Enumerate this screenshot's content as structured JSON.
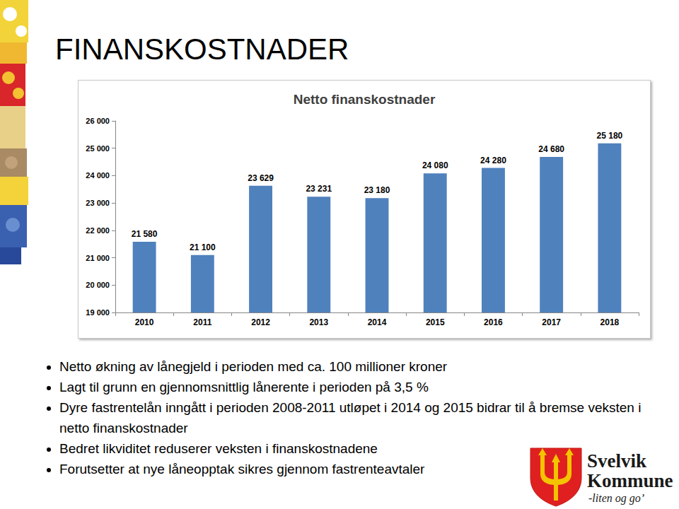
{
  "chart_data": {
    "type": "bar",
    "title": "Netto finanskostnader",
    "categories": [
      "2010",
      "2011",
      "2012",
      "2013",
      "2014",
      "2015",
      "2016",
      "2017",
      "2018"
    ],
    "values": [
      21580,
      21100,
      23629,
      23231,
      23180,
      24080,
      24280,
      24680,
      25180
    ],
    "value_labels": [
      "21 580",
      "21 100",
      "23 629",
      "23 231",
      "23 180",
      "24 080",
      "24 280",
      "24 680",
      "25 180"
    ],
    "color": "#4f81bd",
    "ylim": [
      19000,
      26000
    ],
    "yticks": [
      {
        "value": 19000,
        "label": "19 000"
      },
      {
        "value": 20000,
        "label": "20 000"
      },
      {
        "value": 21000,
        "label": "21 000"
      },
      {
        "value": 22000,
        "label": "22 000"
      },
      {
        "value": 23000,
        "label": "23 000"
      },
      {
        "value": 24000,
        "label": "24 000"
      },
      {
        "value": 25000,
        "label": "25 000"
      },
      {
        "value": 26000,
        "label": "26 000"
      }
    ],
    "grid": false,
    "data_labels": true
  },
  "slide": {
    "heading": "FINANSKOSTNADER",
    "bullets": [
      "Netto økning av lånegjeld i perioden med ca. 100 millioner kroner",
      "Lagt til grunn en gjennomsnittlig lånerente i perioden på 3,5 %",
      "Dyre fastrentelån inngått i perioden 2008-2011 utløpet i 2014 og 2015 bidrar til å bremse veksten i netto finanskostnader",
      "Bedret likviditet reduserer veksten i finanskostnadene",
      "Forutsetter at nye låneopptak sikres gjennom fastrenteavtaler"
    ],
    "logo": {
      "name_lines": [
        "Svelvik",
        "Kommune"
      ],
      "slogan": "-liten og go’"
    }
  }
}
